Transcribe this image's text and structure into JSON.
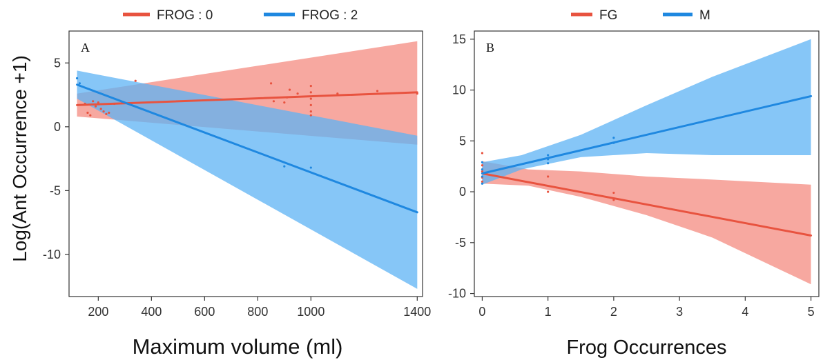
{
  "y_axis_title": "Log(Ant Occurrence +1)",
  "chart_data": [
    {
      "type": "line",
      "panel_label": "A",
      "xlabel": "Maximum volume (ml)",
      "ylabel": "Log(Ant Occurrence +1)",
      "xlim": [
        90,
        1420
      ],
      "ylim": [
        -13.3,
        7.5
      ],
      "x_ticks": [
        200,
        400,
        600,
        800,
        1000,
        1400
      ],
      "x_tick_labels": [
        "200",
        "400",
        "600",
        "800",
        "1000",
        "1400"
      ],
      "y_ticks": [
        5,
        0,
        -5,
        -10
      ],
      "y_tick_labels": [
        "5",
        "0",
        "-5",
        "-10"
      ],
      "grid": false,
      "legend": {
        "placement": "top",
        "entries": [
          {
            "label": "FROG : 0",
            "color": "#e8533f"
          },
          {
            "label": "FROG : 2",
            "color": "#1f88e0"
          }
        ]
      },
      "series": [
        {
          "name": "FROG : 0",
          "color": "#e8533f",
          "band_color": "#f48b80",
          "line": [
            [
              120,
              1.7
            ],
            [
              1400,
              2.7
            ]
          ],
          "band": [
            [
              120,
              0.8,
              2.6
            ],
            [
              1400,
              -1.4,
              6.7
            ]
          ],
          "points": [
            [
              150,
              1.8
            ],
            [
              160,
              1.1
            ],
            [
              170,
              0.9
            ],
            [
              180,
              2.0
            ],
            [
              190,
              1.6
            ],
            [
              200,
              1.9
            ],
            [
              210,
              1.4
            ],
            [
              220,
              1.2
            ],
            [
              230,
              1.0
            ],
            [
              240,
              1.1
            ],
            [
              260,
              1.8
            ],
            [
              340,
              3.6
            ],
            [
              850,
              3.4
            ],
            [
              860,
              2.0
            ],
            [
              900,
              1.9
            ],
            [
              910,
              2.3
            ],
            [
              920,
              2.9
            ],
            [
              950,
              2.6
            ],
            [
              1000,
              3.2
            ],
            [
              1000,
              2.7
            ],
            [
              1000,
              2.2
            ],
            [
              1000,
              1.7
            ],
            [
              1000,
              1.2
            ],
            [
              1000,
              0.9
            ],
            [
              1100,
              2.6
            ],
            [
              1250,
              2.8
            ],
            [
              1400,
              2.6
            ]
          ]
        },
        {
          "name": "FROG : 2",
          "color": "#1f88e0",
          "band_color": "#5eb3f4",
          "line": [
            [
              120,
              3.3
            ],
            [
              1400,
              -6.7
            ]
          ],
          "band": [
            [
              120,
              2.2,
              4.4
            ],
            [
              1400,
              -12.7,
              -0.7
            ]
          ],
          "points": [
            [
              120,
              3.8
            ],
            [
              130,
              3.4
            ],
            [
              900,
              -3.1
            ],
            [
              1000,
              -3.2
            ]
          ]
        }
      ]
    },
    {
      "type": "line",
      "panel_label": "B",
      "xlabel": "Frog Occurrences",
      "ylabel": "",
      "xlim": [
        -0.12,
        5.12
      ],
      "ylim": [
        -10.3,
        15.8
      ],
      "x_ticks": [
        0,
        1,
        2,
        3,
        4,
        5
      ],
      "x_tick_labels": [
        "0",
        "1",
        "2",
        "3",
        "4",
        "5"
      ],
      "y_ticks": [
        15,
        10,
        5,
        0,
        -5,
        -10
      ],
      "y_tick_labels": [
        "15",
        "10",
        "5",
        "0",
        "-5",
        "-10"
      ],
      "grid": false,
      "legend": {
        "placement": "top",
        "entries": [
          {
            "label": "FG",
            "color": "#e8533f"
          },
          {
            "label": "M",
            "color": "#1f88e0"
          }
        ]
      },
      "series": [
        {
          "name": "FG",
          "color": "#e8533f",
          "band_color": "#f48b80",
          "line": [
            [
              0,
              1.8
            ],
            [
              5,
              -4.3
            ]
          ],
          "band": [
            [
              0,
              0.8,
              3.0
            ],
            [
              0.7,
              0.6,
              2.2
            ],
            [
              1.5,
              -0.5,
              2.0
            ],
            [
              2.5,
              -2.3,
              1.5
            ],
            [
              3.5,
              -4.5,
              1.2
            ],
            [
              5,
              -9.1,
              0.7
            ]
          ],
          "points": [
            [
              0,
              3.8
            ],
            [
              0,
              2.6
            ],
            [
              0,
              2.0
            ],
            [
              0,
              1.4
            ],
            [
              0,
              1.0
            ],
            [
              1,
              1.5
            ],
            [
              1,
              0
            ],
            [
              2,
              -0.1
            ],
            [
              2,
              -0.8
            ]
          ]
        },
        {
          "name": "M",
          "color": "#1f88e0",
          "band_color": "#5eb3f4",
          "line": [
            [
              0,
              1.8
            ],
            [
              5,
              9.4
            ]
          ],
          "band": [
            [
              0,
              0.7,
              2.9
            ],
            [
              0.6,
              2.2,
              3.6
            ],
            [
              1.5,
              3.4,
              5.6
            ],
            [
              2.5,
              3.8,
              8.5
            ],
            [
              3.5,
              3.6,
              11.3
            ],
            [
              5,
              3.6,
              15.0
            ]
          ],
          "points": [
            [
              0,
              2.9
            ],
            [
              0,
              2.2
            ],
            [
              0,
              1.5
            ],
            [
              0,
              0.8
            ],
            [
              1,
              3.6
            ],
            [
              1,
              3.2
            ],
            [
              1,
              2.8
            ],
            [
              2,
              5.3
            ],
            [
              2,
              4.8
            ]
          ]
        }
      ]
    }
  ]
}
